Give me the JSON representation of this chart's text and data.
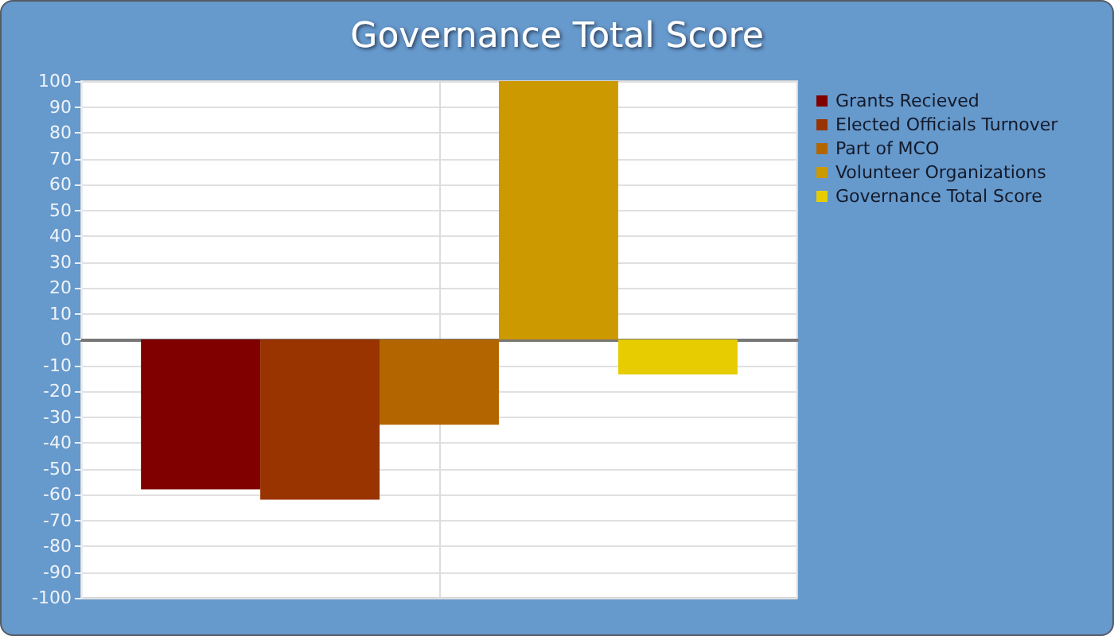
{
  "chart_data": {
    "type": "bar",
    "title": "Governance Total Score",
    "categories": [
      null
    ],
    "series": [
      {
        "name": "Grants Recieved",
        "color": "#800000",
        "values": [
          -58
        ]
      },
      {
        "name": "Elected Officials Turnover",
        "color": "#993300",
        "values": [
          -62
        ]
      },
      {
        "name": "Part of MCO",
        "color": "#b36600",
        "values": [
          -33
        ]
      },
      {
        "name": "Volunteer Organizations",
        "color": "#cc9900",
        "values": [
          100
        ]
      },
      {
        "name": "Governance Total Score",
        "color": "#e6cc00",
        "values": [
          -13.5
        ]
      }
    ],
    "ylim": [
      -100,
      100
    ],
    "yticks": [
      -100,
      -90,
      -80,
      -70,
      -60,
      -50,
      -40,
      -30,
      -20,
      -10,
      0,
      10,
      20,
      30,
      40,
      50,
      60,
      70,
      80,
      90,
      100
    ],
    "grid": true,
    "legend": "top right"
  }
}
